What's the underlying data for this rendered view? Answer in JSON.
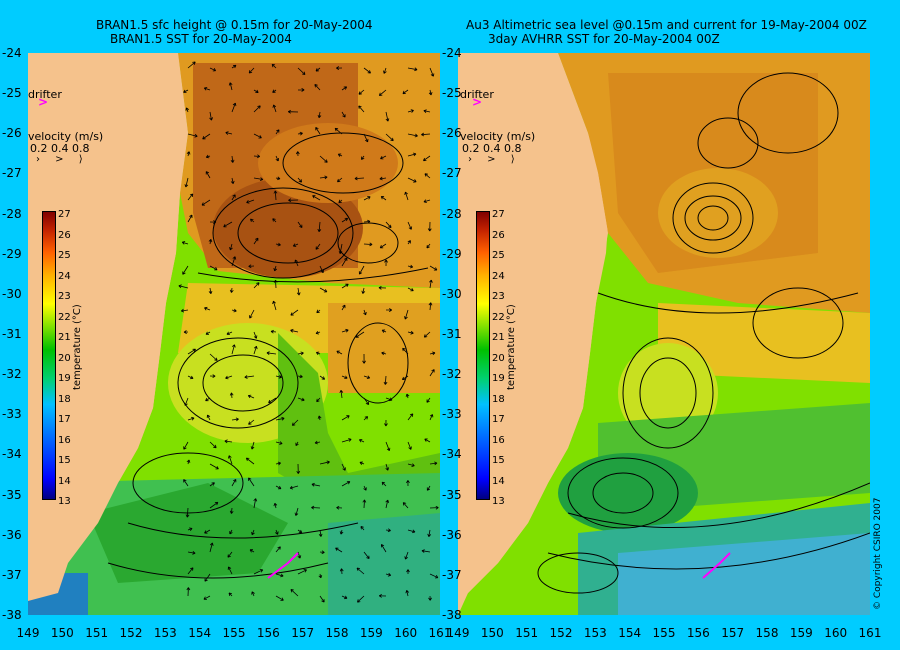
{
  "left_panel": {
    "title_line1": "BRAN1.5 sfc height @ 0.15m for 20-May-2004",
    "title_line2": "BRAN1.5 SST for 20-May-2004"
  },
  "right_panel": {
    "title_line1": "Au3 Altimetric sea level  @0.15m and current for 19-May-2004 00Z",
    "title_line2": "3day AVHRR SST for 20-May-2004 00Z"
  },
  "drifter_label": "drifter",
  "drifter_marker": ">",
  "velocity": {
    "title": "velocity (m/s)",
    "scale": "0.2 0.4 0.8",
    "arrows": "› > ⟩"
  },
  "colorbar": {
    "label": "temperature (°C)",
    "ticks": [
      "27",
      "26",
      "25",
      "24",
      "23",
      "22",
      "21",
      "20",
      "19",
      "18",
      "17",
      "16",
      "15",
      "14",
      "13"
    ]
  },
  "lat_ticks": [
    "-24",
    "-25",
    "-26",
    "-27",
    "-28",
    "-29",
    "-30",
    "-31",
    "-32",
    "-33",
    "-34",
    "-35",
    "-36",
    "-37",
    "-38"
  ],
  "lon_ticks": [
    "149",
    "150",
    "151",
    "152",
    "153",
    "154",
    "155",
    "156",
    "157",
    "158",
    "159",
    "160",
    "161"
  ],
  "copyright": "© Copyright CSIRO 2007",
  "colors": {
    "background": "#00ccff",
    "land": "#f5c28c",
    "drifter": "#ff00ff"
  }
}
